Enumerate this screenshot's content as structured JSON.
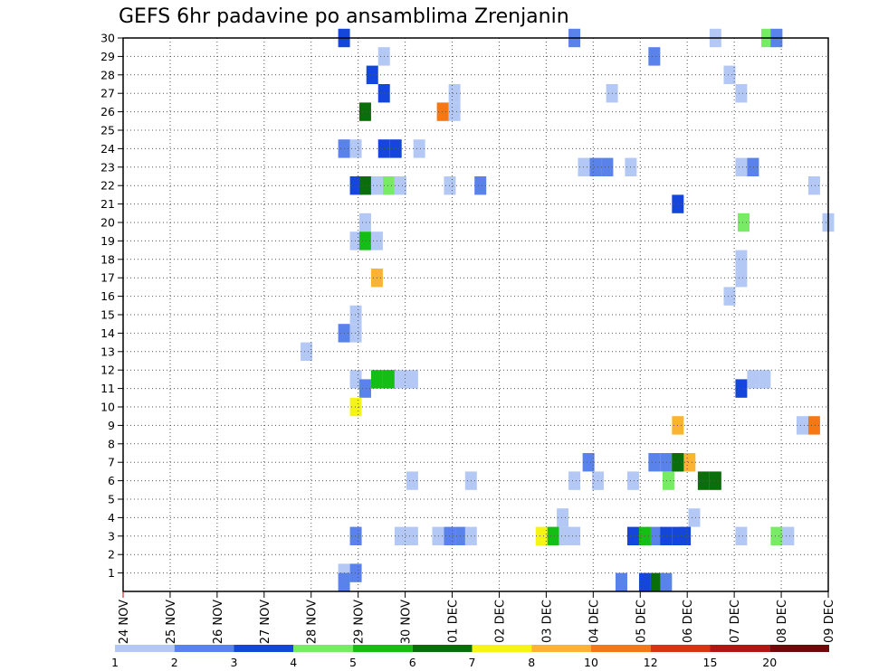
{
  "chart_data": {
    "type": "heatmap",
    "title": "GEFS 6hr padavine po ansamblima Zrenjanin",
    "x_ticks": [
      "24 NOV",
      "25 NOV",
      "26 NOV",
      "27 NOV",
      "28 NOV",
      "29 NOV",
      "30 NOV",
      "01 DEC",
      "02 DEC",
      "03 DEC",
      "04 DEC",
      "05 DEC",
      "06 DEC",
      "07 DEC",
      "08 DEC",
      "09 DEC"
    ],
    "y_ticks": [
      "1",
      "2",
      "3",
      "4",
      "5",
      "6",
      "7",
      "8",
      "9",
      "10",
      "11",
      "12",
      "13",
      "14",
      "15",
      "16",
      "17",
      "18",
      "19",
      "20",
      "21",
      "22",
      "23",
      "24",
      "25",
      "26",
      "27",
      "28",
      "29",
      "30"
    ],
    "xlim_days": [
      0,
      15
    ],
    "ylim": [
      0,
      30
    ],
    "grid": true,
    "legend": {
      "placement": "bottom",
      "labels": [
        "1",
        "2",
        "3",
        "4",
        "5",
        "6",
        "7",
        "8",
        "10",
        "12",
        "15",
        "20"
      ],
      "colors": [
        "#b4c8f5",
        "#5a82eb",
        "#1446dc",
        "#78eb64",
        "#14be14",
        "#0a6e0a",
        "#f5f514",
        "#fab432",
        "#f57814",
        "#dc3214",
        "#b41414",
        "#6e0a0a"
      ]
    },
    "cells": [
      {
        "day": 4.7,
        "y": 30,
        "bin": 3
      },
      {
        "day": 9.6,
        "y": 30,
        "bin": 2
      },
      {
        "day": 12.6,
        "y": 30,
        "bin": 1
      },
      {
        "day": 13.7,
        "y": 30,
        "bin": 4
      },
      {
        "day": 13.9,
        "y": 30,
        "bin": 2
      },
      {
        "day": 5.55,
        "y": 29,
        "bin": 1
      },
      {
        "day": 11.3,
        "y": 29,
        "bin": 2
      },
      {
        "day": 5.3,
        "y": 28,
        "bin": 3
      },
      {
        "day": 12.9,
        "y": 28,
        "bin": 1
      },
      {
        "day": 5.55,
        "y": 27,
        "bin": 3
      },
      {
        "day": 7.05,
        "y": 27,
        "bin": 1
      },
      {
        "day": 10.4,
        "y": 27,
        "bin": 1
      },
      {
        "day": 13.15,
        "y": 27,
        "bin": 1
      },
      {
        "day": 5.15,
        "y": 26,
        "bin": 6
      },
      {
        "day": 6.8,
        "y": 26,
        "bin": 9
      },
      {
        "day": 7.05,
        "y": 26,
        "bin": 1
      },
      {
        "day": 4.7,
        "y": 24,
        "bin": 2
      },
      {
        "day": 4.95,
        "y": 24,
        "bin": 1
      },
      {
        "day": 5.55,
        "y": 24,
        "bin": 3
      },
      {
        "day": 5.8,
        "y": 24,
        "bin": 3
      },
      {
        "day": 6.3,
        "y": 24,
        "bin": 1
      },
      {
        "day": 9.8,
        "y": 23,
        "bin": 1
      },
      {
        "day": 10.05,
        "y": 23,
        "bin": 2
      },
      {
        "day": 10.3,
        "y": 23,
        "bin": 2
      },
      {
        "day": 10.8,
        "y": 23,
        "bin": 1
      },
      {
        "day": 13.15,
        "y": 23,
        "bin": 1
      },
      {
        "day": 13.4,
        "y": 23,
        "bin": 2
      },
      {
        "day": 4.95,
        "y": 22,
        "bin": 3
      },
      {
        "day": 5.15,
        "y": 22,
        "bin": 6
      },
      {
        "day": 5.4,
        "y": 22,
        "bin": 1
      },
      {
        "day": 5.65,
        "y": 22,
        "bin": 4
      },
      {
        "day": 5.9,
        "y": 22,
        "bin": 1
      },
      {
        "day": 6.95,
        "y": 22,
        "bin": 1
      },
      {
        "day": 7.6,
        "y": 22,
        "bin": 2
      },
      {
        "day": 14.7,
        "y": 22,
        "bin": 1
      },
      {
        "day": 11.8,
        "y": 21,
        "bin": 3
      },
      {
        "day": 5.15,
        "y": 20,
        "bin": 1
      },
      {
        "day": 13.2,
        "y": 20,
        "bin": 4
      },
      {
        "day": 15.0,
        "y": 20,
        "bin": 1
      },
      {
        "day": 4.95,
        "y": 19,
        "bin": 1
      },
      {
        "day": 5.15,
        "y": 19,
        "bin": 5
      },
      {
        "day": 5.4,
        "y": 19,
        "bin": 1
      },
      {
        "day": 13.15,
        "y": 18,
        "bin": 1
      },
      {
        "day": 5.4,
        "y": 17,
        "bin": 8
      },
      {
        "day": 13.15,
        "y": 17,
        "bin": 1
      },
      {
        "day": 12.9,
        "y": 16,
        "bin": 1
      },
      {
        "day": 4.95,
        "y": 15,
        "bin": 1
      },
      {
        "day": 4.7,
        "y": 14,
        "bin": 2
      },
      {
        "day": 4.95,
        "y": 14,
        "bin": 1
      },
      {
        "day": 3.9,
        "y": 13,
        "bin": 1
      },
      {
        "day": 4.95,
        "y": 11.5,
        "bin": 1
      },
      {
        "day": 5.15,
        "y": 11,
        "bin": 2
      },
      {
        "day": 5.4,
        "y": 11.5,
        "bin": 5
      },
      {
        "day": 5.65,
        "y": 11.5,
        "bin": 5
      },
      {
        "day": 5.9,
        "y": 11.5,
        "bin": 1
      },
      {
        "day": 6.15,
        "y": 11.5,
        "bin": 1
      },
      {
        "day": 13.15,
        "y": 11,
        "bin": 3
      },
      {
        "day": 13.4,
        "y": 11.5,
        "bin": 1
      },
      {
        "day": 13.65,
        "y": 11.5,
        "bin": 1
      },
      {
        "day": 4.95,
        "y": 10,
        "bin": 7
      },
      {
        "day": 11.8,
        "y": 9,
        "bin": 8
      },
      {
        "day": 14.45,
        "y": 9,
        "bin": 1
      },
      {
        "day": 14.7,
        "y": 9,
        "bin": 9
      },
      {
        "day": 9.9,
        "y": 7,
        "bin": 2
      },
      {
        "day": 11.3,
        "y": 7,
        "bin": 2
      },
      {
        "day": 11.55,
        "y": 7,
        "bin": 2
      },
      {
        "day": 11.8,
        "y": 7,
        "bin": 6
      },
      {
        "day": 12.05,
        "y": 7,
        "bin": 8
      },
      {
        "day": 11.8,
        "y": 7,
        "bin": 6
      },
      {
        "day": 6.15,
        "y": 6,
        "bin": 1
      },
      {
        "day": 7.4,
        "y": 6,
        "bin": 1
      },
      {
        "day": 9.6,
        "y": 6,
        "bin": 1
      },
      {
        "day": 10.1,
        "y": 6,
        "bin": 1
      },
      {
        "day": 10.85,
        "y": 6,
        "bin": 1
      },
      {
        "day": 11.6,
        "y": 6,
        "bin": 4
      },
      {
        "day": 12.6,
        "y": 6,
        "bin": 6
      },
      {
        "day": 12.35,
        "y": 6,
        "bin": 6
      },
      {
        "day": 9.35,
        "y": 4,
        "bin": 1
      },
      {
        "day": 12.15,
        "y": 4,
        "bin": 1
      },
      {
        "day": 4.95,
        "y": 3,
        "bin": 2
      },
      {
        "day": 5.9,
        "y": 3,
        "bin": 1
      },
      {
        "day": 6.15,
        "y": 3,
        "bin": 1
      },
      {
        "day": 6.7,
        "y": 3,
        "bin": 1
      },
      {
        "day": 6.95,
        "y": 3,
        "bin": 2
      },
      {
        "day": 7.2,
        "y": 3,
        "bin": 2
      },
      {
        "day": 7.4,
        "y": 3,
        "bin": 1
      },
      {
        "day": 8.9,
        "y": 3,
        "bin": 7
      },
      {
        "day": 9.15,
        "y": 3,
        "bin": 5
      },
      {
        "day": 9.4,
        "y": 3,
        "bin": 1
      },
      {
        "day": 9.6,
        "y": 3,
        "bin": 1
      },
      {
        "day": 10.85,
        "y": 3,
        "bin": 3
      },
      {
        "day": 11.1,
        "y": 3,
        "bin": 5
      },
      {
        "day": 11.35,
        "y": 3,
        "bin": 2
      },
      {
        "day": 11.55,
        "y": 3,
        "bin": 3
      },
      {
        "day": 11.8,
        "y": 3,
        "bin": 3
      },
      {
        "day": 11.95,
        "y": 3,
        "bin": 3
      },
      {
        "day": 13.15,
        "y": 3,
        "bin": 1
      },
      {
        "day": 13.9,
        "y": 3,
        "bin": 4
      },
      {
        "day": 14.15,
        "y": 3,
        "bin": 1
      },
      {
        "day": 4.7,
        "y": 1,
        "bin": 1
      },
      {
        "day": 4.95,
        "y": 1,
        "bin": 2
      },
      {
        "day": 4.7,
        "y": 0.5,
        "bin": 2
      },
      {
        "day": 10.6,
        "y": 0.5,
        "bin": 2
      },
      {
        "day": 11.1,
        "y": 0.5,
        "bin": 3
      },
      {
        "day": 11.35,
        "y": 0.5,
        "bin": 6
      },
      {
        "day": 11.55,
        "y": 0.5,
        "bin": 2
      }
    ]
  }
}
